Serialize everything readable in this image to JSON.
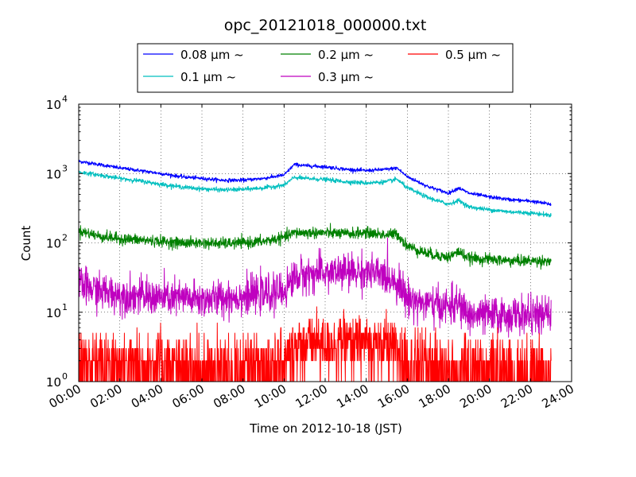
{
  "chart_data": {
    "type": "line",
    "title": "opc_20121018_000000.txt",
    "xlabel": "Time on 2012-10-18 (JST)",
    "ylabel": "Count",
    "x_unit": "hour",
    "xlim": [
      0,
      24
    ],
    "ylim": [
      1,
      10000
    ],
    "yscale": "log",
    "grid": true,
    "legend_position": "top, outside the plot",
    "x_tick_labels": [
      "00:00",
      "02:00",
      "04:00",
      "06:00",
      "08:00",
      "10:00",
      "12:00",
      "14:00",
      "16:00",
      "18:00",
      "20:00",
      "22:00",
      "24:00"
    ],
    "y_tick_labels": [
      {
        "base": "10",
        "exp": "0"
      },
      {
        "base": "10",
        "exp": "1"
      },
      {
        "base": "10",
        "exp": "2"
      },
      {
        "base": "10",
        "exp": "3"
      },
      {
        "base": "10",
        "exp": "4"
      }
    ],
    "x": [
      0,
      1,
      2,
      3,
      4,
      5,
      6,
      7,
      8,
      9,
      10,
      10.5,
      11,
      12,
      13,
      14,
      15,
      15.5,
      16,
      17,
      18,
      18.5,
      19,
      20,
      21,
      22,
      23
    ],
    "series": [
      {
        "name": "0.08 μm ~",
        "color": "#0000ff",
        "noise": 0.03,
        "values": [
          1500,
          1350,
          1200,
          1100,
          1000,
          900,
          850,
          800,
          800,
          850,
          950,
          1350,
          1300,
          1250,
          1150,
          1100,
          1150,
          1200,
          900,
          650,
          520,
          620,
          520,
          460,
          420,
          400,
          360
        ]
      },
      {
        "name": "0.1 μm ~",
        "color": "#00bfbf",
        "noise": 0.035,
        "values": [
          1050,
          950,
          850,
          780,
          700,
          640,
          600,
          580,
          590,
          620,
          680,
          880,
          850,
          820,
          760,
          730,
          760,
          830,
          620,
          450,
          360,
          410,
          330,
          300,
          280,
          270,
          250
        ]
      },
      {
        "name": "0.2 μm ~",
        "color": "#008000",
        "noise": 0.09,
        "values": [
          150,
          125,
          115,
          110,
          105,
          100,
          100,
          98,
          100,
          105,
          120,
          140,
          140,
          140,
          135,
          140,
          130,
          135,
          90,
          70,
          62,
          75,
          60,
          58,
          55,
          55,
          55
        ]
      },
      {
        "name": "0.3 μm ~",
        "color": "#bf00bf",
        "noise": 0.3,
        "values": [
          25,
          20,
          18,
          17,
          16,
          16,
          15,
          16,
          17,
          18,
          20,
          32,
          35,
          37,
          38,
          38,
          33,
          28,
          16,
          13,
          12,
          13,
          9,
          9,
          9,
          9,
          9
        ]
      },
      {
        "name": "0.5 μm ~",
        "color": "#ff0000",
        "noise": 0,
        "values": [
          2,
          2,
          2,
          2,
          2,
          1.5,
          1.5,
          1.5,
          1.5,
          2,
          2,
          3.5,
          4,
          4,
          4,
          4,
          3.5,
          3,
          2,
          2,
          1.5,
          1.5,
          1.5,
          1.5,
          1.5,
          1.5,
          1.5
        ]
      }
    ]
  }
}
